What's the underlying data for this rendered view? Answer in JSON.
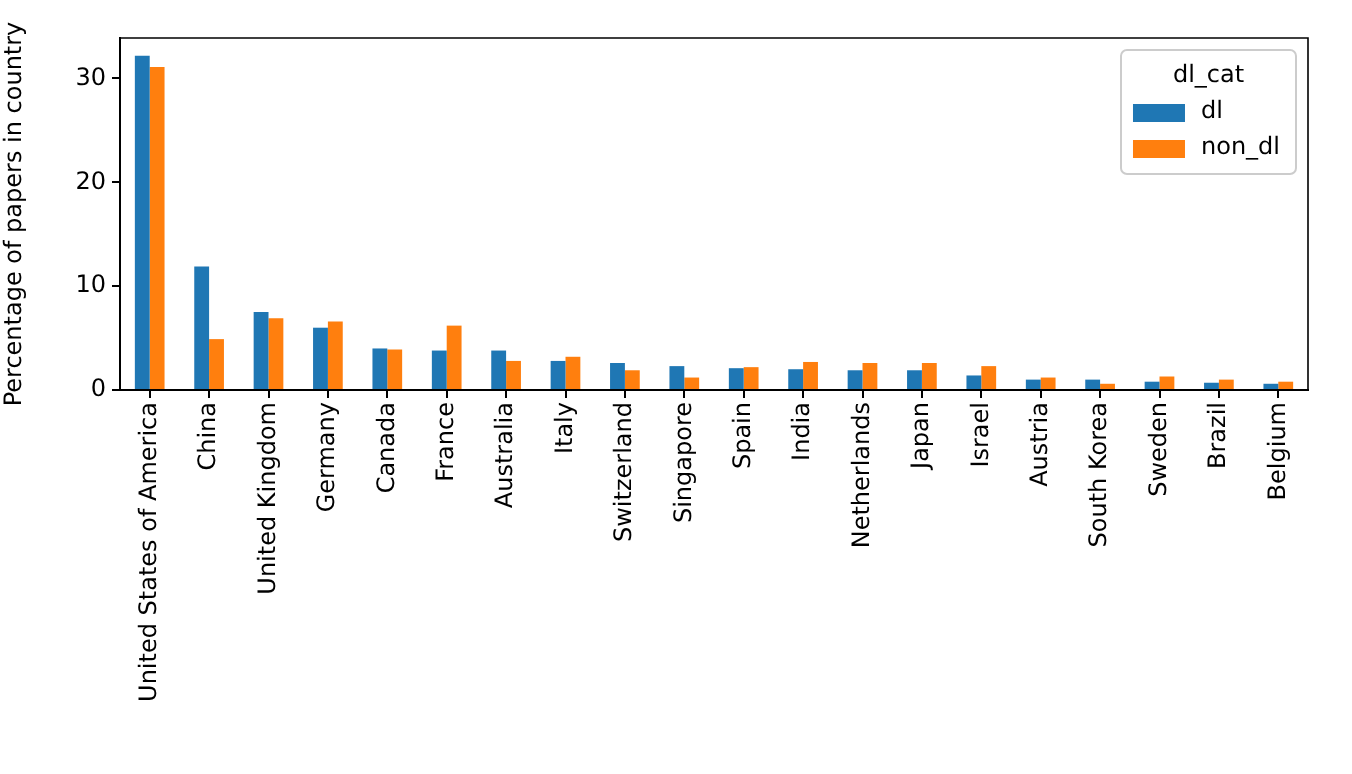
{
  "chart_data": {
    "type": "bar",
    "ylabel": "Percentage of papers in country",
    "legend_title": "dl_cat",
    "categories": [
      "United States of America",
      "China",
      "United Kingdom",
      "Germany",
      "Canada",
      "France",
      "Australia",
      "Italy",
      "Switzerland",
      "Singapore",
      "Spain",
      "India",
      "Netherlands",
      "Japan",
      "Israel",
      "Austria",
      "South Korea",
      "Sweden",
      "Brazil",
      "Belgium"
    ],
    "series": [
      {
        "name": "dl",
        "color": "#1f77b4",
        "values": [
          32.2,
          11.9,
          7.5,
          6.0,
          4.0,
          3.8,
          3.8,
          2.8,
          2.6,
          2.3,
          2.1,
          2.0,
          1.9,
          1.9,
          1.4,
          1.0,
          1.0,
          0.8,
          0.7,
          0.6
        ]
      },
      {
        "name": "non_dl",
        "color": "#ff7f0e",
        "values": [
          31.1,
          4.9,
          6.9,
          6.6,
          3.9,
          6.2,
          2.8,
          3.2,
          1.9,
          1.2,
          2.2,
          2.7,
          2.6,
          2.6,
          2.3,
          1.2,
          0.6,
          1.3,
          1.0,
          0.8
        ]
      }
    ],
    "ylim": [
      0,
      33.9
    ],
    "yticks": [
      0,
      10,
      20,
      30
    ],
    "grid": false,
    "legend": "top right"
  }
}
